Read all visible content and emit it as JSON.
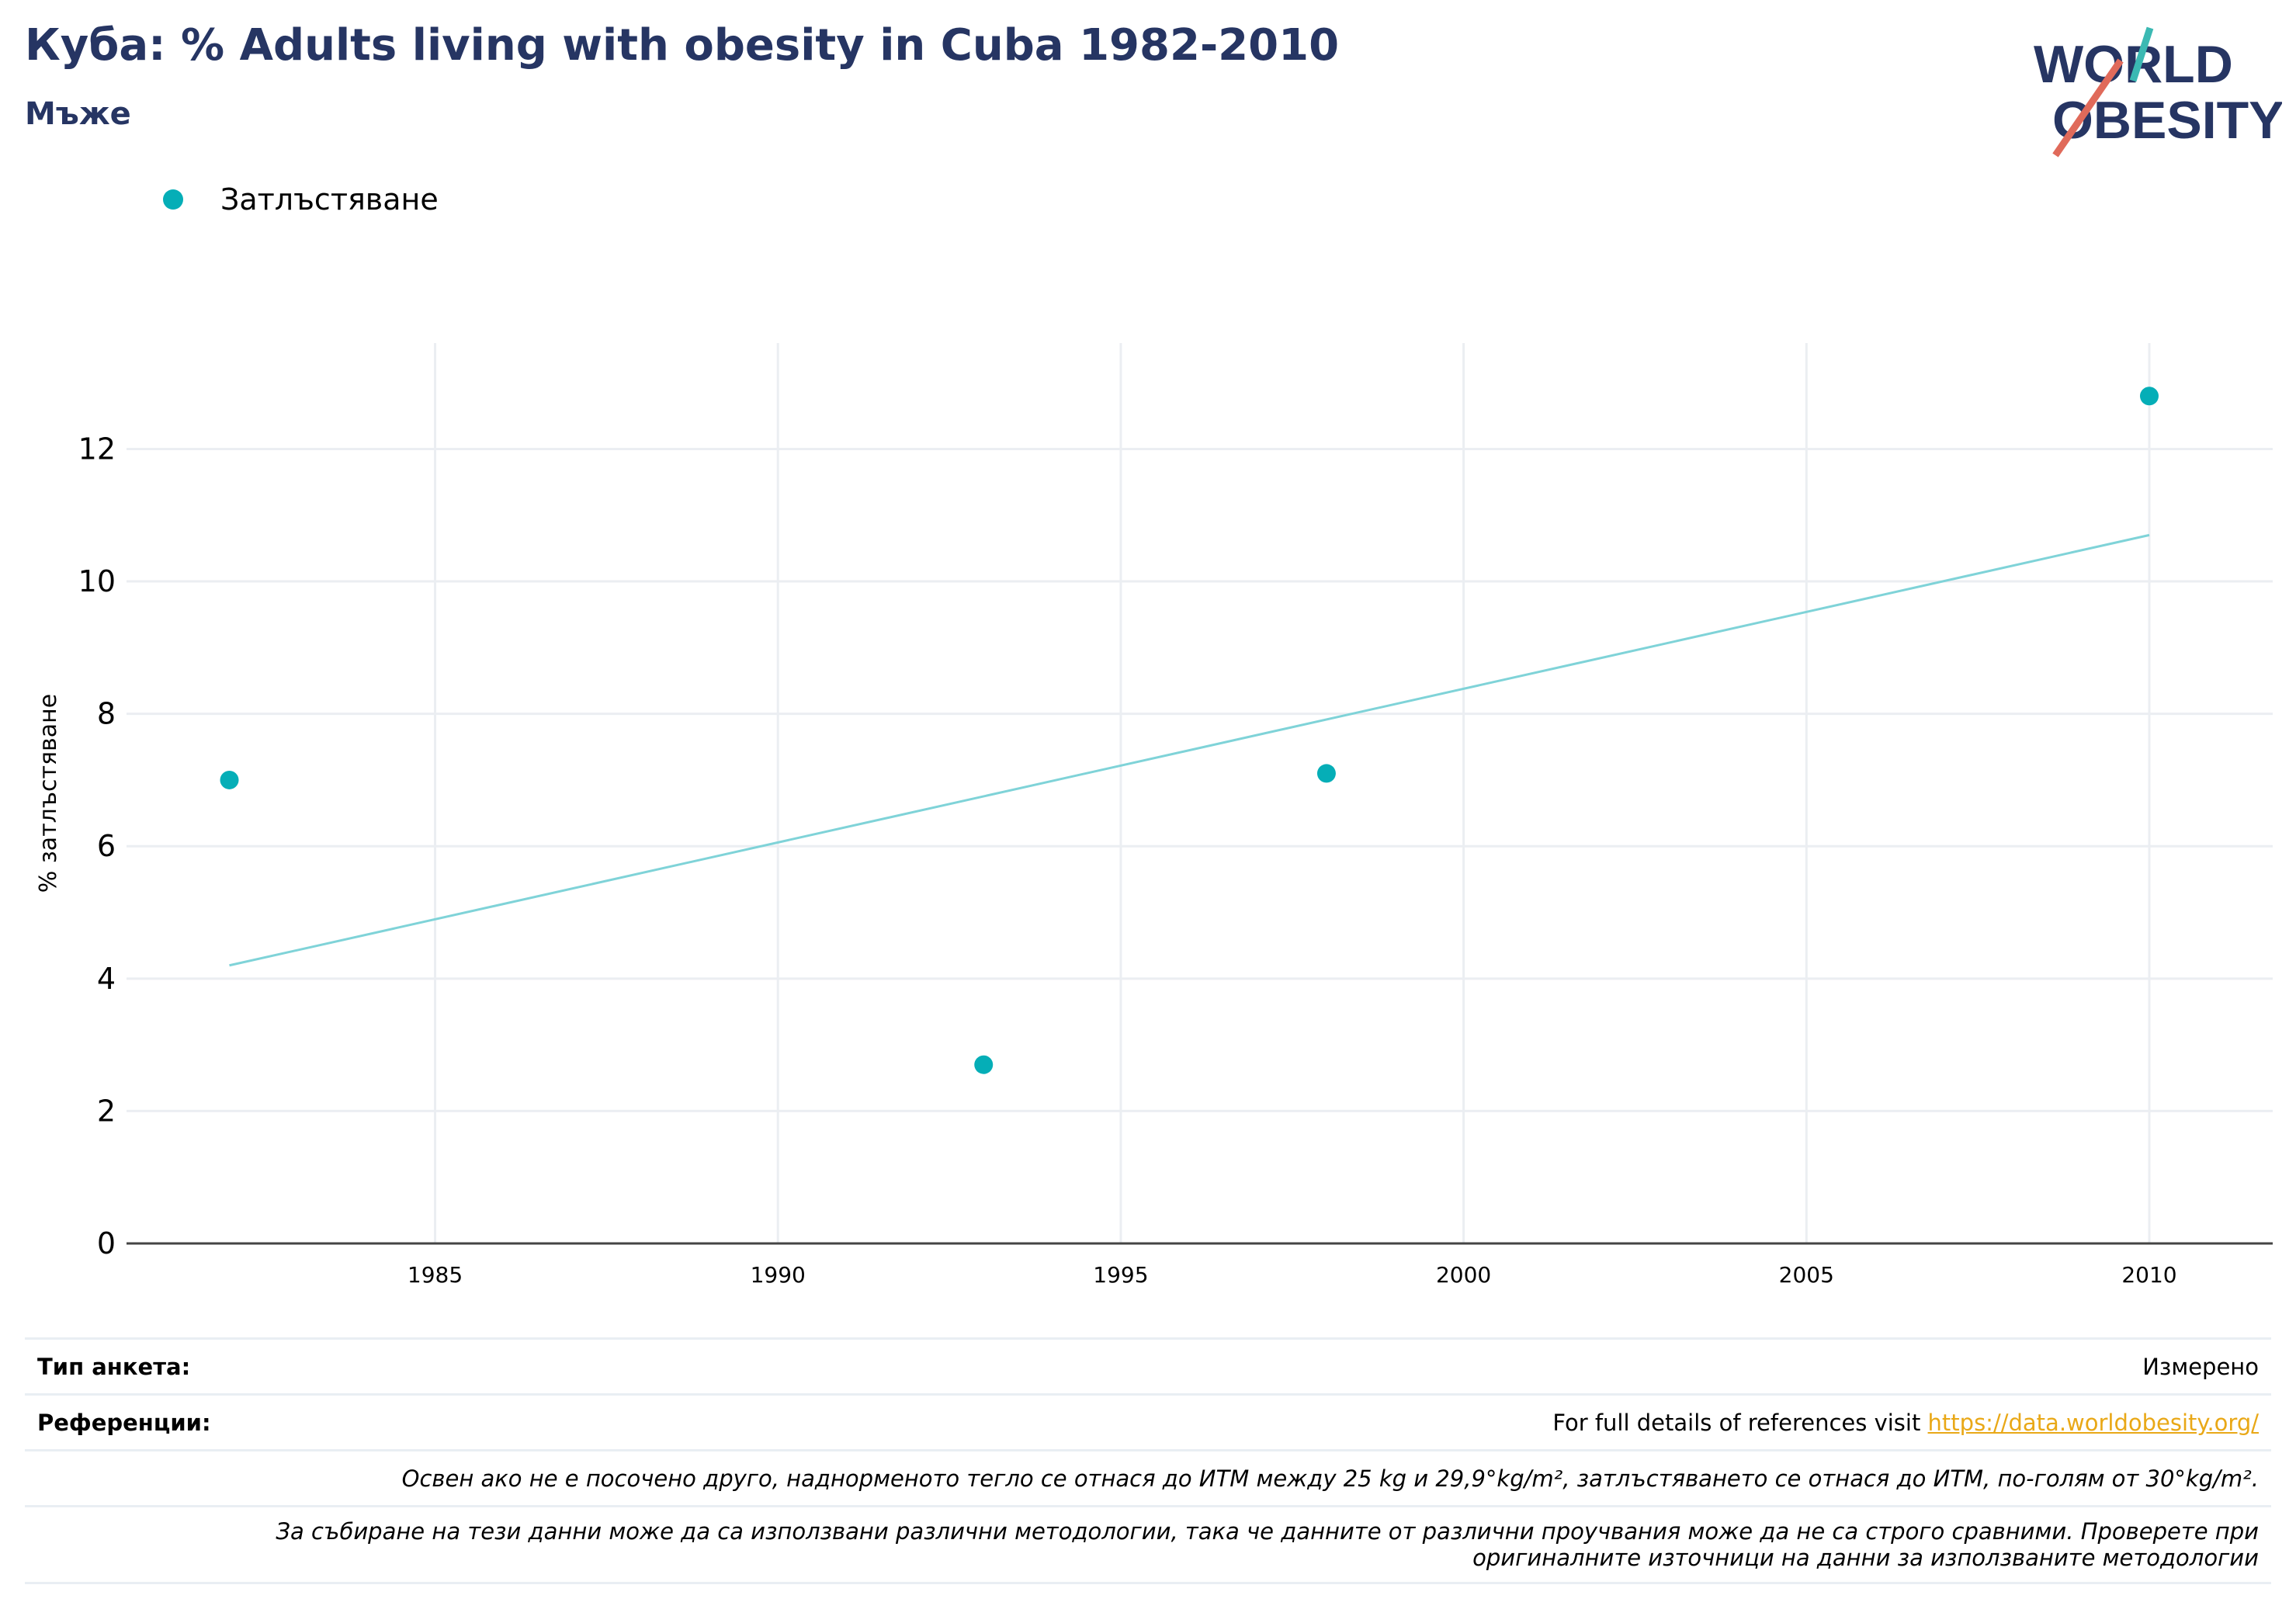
{
  "header": {
    "title": "Куба: % Adults living with obesity in Cuba 1982-2010",
    "subtitle": "Мъже"
  },
  "logo": {
    "line1": "WORLD",
    "line2": "OBESITY"
  },
  "colors": {
    "accent": "#05aeb7",
    "trend": "#7fd3d8",
    "title": "#263563",
    "link": "#e9a817",
    "logo_red": "#e06a5a",
    "logo_teal": "#3bb9b3"
  },
  "chart_data": {
    "type": "scatter",
    "series": [
      {
        "name": "Затлъстяване",
        "points": [
          {
            "x": 1982,
            "y": 7.0
          },
          {
            "x": 1993,
            "y": 2.7
          },
          {
            "x": 1998,
            "y": 7.1
          },
          {
            "x": 2010,
            "y": 12.8
          }
        ]
      }
    ],
    "trendline": {
      "x": [
        1982,
        2010
      ],
      "y": [
        4.2,
        10.7
      ]
    },
    "xlabel": "",
    "ylabel": "% затлъстяване",
    "xlim": [
      1980.5,
      2011.8
    ],
    "ylim": [
      0,
      13.6
    ],
    "xticks": [
      1985,
      1990,
      1995,
      2000,
      2005,
      2010
    ],
    "yticks": [
      0,
      2,
      4,
      6,
      8,
      10,
      12
    ],
    "grid": true,
    "legend": "top-left"
  },
  "footer": {
    "survey_label": "Тип анкета:",
    "survey_value": "Измерено",
    "ref_label": "Референции:",
    "ref_text": "For full details of references visit ",
    "ref_link": "https://data.worldobesity.org/",
    "note1": "Освен ако не е посочено друго, наднорменото тегло се отнася до ИТМ между 25 kg и 29,9°kg/m², затлъстяването се отнася до ИТМ, по-голям от 30°kg/m².",
    "note2_line1": "За събиране на тези данни може да са използвани различни методологии, така че данните от различни проучвания може да не са строго сравними. Проверете при",
    "note2_line2": "оригиналните източници на данни за използваните методологии"
  }
}
